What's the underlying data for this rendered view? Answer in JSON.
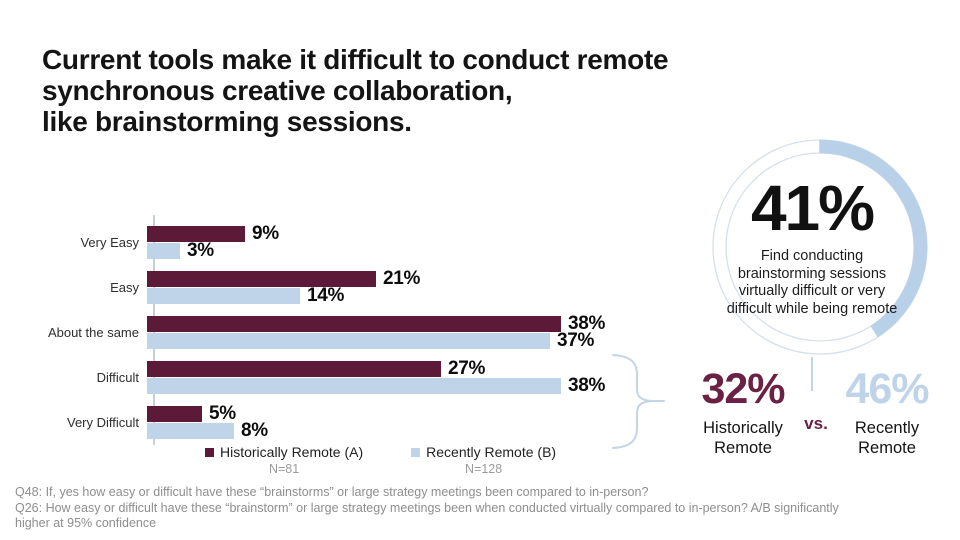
{
  "colors": {
    "maroon": "#5c1a38",
    "maroon_bright": "#6b2143",
    "light_blue": "#bfd4e9",
    "donut_ring": "#b8d0e8",
    "donut_track": "#d6e0ea",
    "text_black": "#141414",
    "footnote_gray": "#8e8e8e"
  },
  "title": {
    "lines": [
      "Current tools make it difficult to conduct remote",
      "synchronous creative collaboration,",
      "like brainstorming sessions."
    ]
  },
  "chart_data": {
    "type": "bar",
    "orientation": "horizontal",
    "categories": [
      "Very Easy",
      "Easy",
      "About the same",
      "Difficult",
      "Very Difficult"
    ],
    "series": [
      {
        "name": "Historically Remote (A)",
        "n": "N=81",
        "color": "#5c1a38",
        "values": [
          9,
          21,
          38,
          27,
          5
        ]
      },
      {
        "name": "Recently Remote (B)",
        "n": "N=128",
        "color": "#bfd4e9",
        "values": [
          3,
          14,
          37,
          38,
          8
        ]
      }
    ],
    "value_suffix": "%",
    "xlim": [
      0,
      40
    ],
    "grid": false,
    "legend_position": "bottom",
    "annotation": "brace grouping Difficult and Very Difficult rows pointing to comparison stats"
  },
  "donut": {
    "percent": 41,
    "value_label": "41%",
    "description": "Find conducting brainstorming sessions virtually difficult or very difficult while being remote"
  },
  "comparison": {
    "left": {
      "value": "32%",
      "label_line1": "Historically",
      "label_line2": "Remote"
    },
    "vs_label": "vs.",
    "right": {
      "value": "46%",
      "label_line1": "Recently",
      "label_line2": "Remote"
    }
  },
  "footnotes": {
    "lines": [
      "Q48: If, yes how easy or difficult have these “brainstorms” or large strategy meetings been compared to in-person?",
      "Q26: How easy or difficult have these “brainstorm” or large strategy meetings been when conducted virtually compared to in-person? A/B significantly",
      "higher at 95% confidence"
    ]
  }
}
